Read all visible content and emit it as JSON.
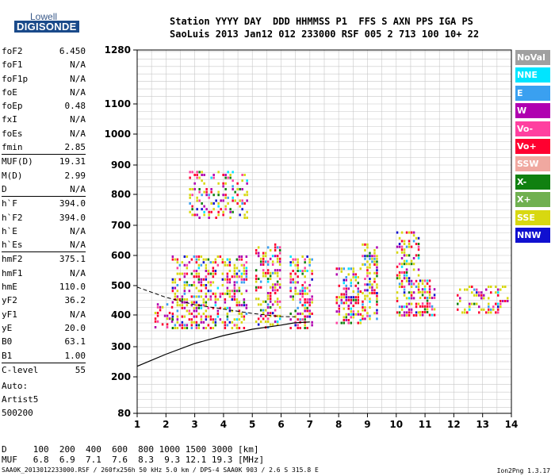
{
  "logo": {
    "line1": "Lowell",
    "line2": "DIGISONDE"
  },
  "header": {
    "row1": "Station YYYY DAY  DDD HHMMSS P1  FFS S AXN PPS IGA PS",
    "row2": "SaoLuis 2013 Jan12 012 233000 RSF 005 2 713 100 10+ 22"
  },
  "params": [
    {
      "label": "foF2",
      "value": "6.450"
    },
    {
      "label": "foF1",
      "value": "N/A"
    },
    {
      "label": "foF1p",
      "value": "N/A"
    },
    {
      "label": "foE",
      "value": "N/A"
    },
    {
      "label": "foEp",
      "value": "0.48"
    },
    {
      "label": "fxI",
      "value": "N/A"
    },
    {
      "label": "foEs",
      "value": "N/A"
    },
    {
      "label": "fmin",
      "value": "2.85"
    },
    {
      "label": "MUF(D)",
      "value": "19.31",
      "sep": true
    },
    {
      "label": "M(D)",
      "value": "2.99"
    },
    {
      "label": "D",
      "value": "N/A"
    },
    {
      "label": "h`F",
      "value": "394.0",
      "sep": true
    },
    {
      "label": "h`F2",
      "value": "394.0"
    },
    {
      "label": "h`E",
      "value": "N/A"
    },
    {
      "label": "h`Es",
      "value": "N/A"
    },
    {
      "label": "hmF2",
      "value": "375.1",
      "sep": true
    },
    {
      "label": "hmF1",
      "value": "N/A"
    },
    {
      "label": "hmE",
      "value": "110.0"
    },
    {
      "label": "yF2",
      "value": "36.2"
    },
    {
      "label": "yF1",
      "value": "N/A"
    },
    {
      "label": "yE",
      "value": "20.0"
    },
    {
      "label": "B0",
      "value": "63.1"
    },
    {
      "label": "B1",
      "value": "1.00"
    },
    {
      "label": "C-level",
      "value": "55",
      "sep": true
    }
  ],
  "autoscale": {
    "line1": "Auto:",
    "line2": "Artist5",
    "line3": "500200"
  },
  "legend": [
    {
      "label": "NoVal",
      "color": "#a0a0a0"
    },
    {
      "label": "NNE",
      "color": "#00e5ff"
    },
    {
      "label": "E",
      "color": "#3aa0f0"
    },
    {
      "label": "W",
      "color": "#b000b0"
    },
    {
      "label": "Vo-",
      "color": "#ff40a0"
    },
    {
      "label": "Vo+",
      "color": "#ff0030"
    },
    {
      "label": "SSW",
      "color": "#f0a8a0"
    },
    {
      "label": "X-",
      "color": "#108010"
    },
    {
      "label": "X+",
      "color": "#70b050"
    },
    {
      "label": "SSE",
      "color": "#d8d810"
    },
    {
      "label": "NNW",
      "color": "#1010d0"
    }
  ],
  "footer": {
    "d_row": "D     100  200  400  600  800 1000 1500 3000 [km]",
    "muf_row": "MUF   6.8  6.9  7.1  7.6  8.3  9.3 12.1 19.3 [MHz]",
    "file_row": "SAA0K_2013012233000.RSF / 260fx256h 50 kHz 5.0 km / DPS-4 SAA0K 903 / 2.6 S 315.8 E",
    "version": "Ion2Png 1.3.17"
  },
  "chart_data": {
    "type": "scatter",
    "title": "",
    "xlabel": "",
    "ylabel": "",
    "xlim": [
      1,
      14
    ],
    "ylim": [
      80,
      1280
    ],
    "y_scale": "nonlinear (ionogram virtual height)",
    "x_ticks": [
      1,
      2,
      3,
      4,
      5,
      6,
      7,
      8,
      9,
      10,
      11,
      12,
      13,
      14
    ],
    "y_ticks": [
      80,
      200,
      300,
      400,
      500,
      600,
      700,
      800,
      900,
      1000,
      1100,
      1280
    ],
    "grid": true,
    "legend_placement": "right",
    "echo_clusters": [
      {
        "x_range": [
          1.6,
          2.2
        ],
        "y_range": [
          360,
          440
        ],
        "density": 0.35
      },
      {
        "x_range": [
          2.2,
          4.8
        ],
        "y_range": [
          360,
          600
        ],
        "density": 0.42
      },
      {
        "x_range": [
          2.8,
          4.8
        ],
        "y_range": [
          720,
          880
        ],
        "density": 0.3
      },
      {
        "x_range": [
          5.1,
          6.0
        ],
        "y_range": [
          360,
          640
        ],
        "density": 0.4
      },
      {
        "x_range": [
          6.3,
          7.1
        ],
        "y_range": [
          360,
          600
        ],
        "density": 0.45
      },
      {
        "x_range": [
          7.9,
          8.8
        ],
        "y_range": [
          370,
          560
        ],
        "density": 0.5
      },
      {
        "x_range": [
          8.8,
          9.3
        ],
        "y_range": [
          390,
          640
        ],
        "density": 0.45
      },
      {
        "x_range": [
          10.0,
          10.8
        ],
        "y_range": [
          400,
          680
        ],
        "density": 0.45
      },
      {
        "x_range": [
          10.8,
          11.3
        ],
        "y_range": [
          400,
          520
        ],
        "density": 0.4
      },
      {
        "x_range": [
          12.1,
          13.9
        ],
        "y_range": [
          410,
          500
        ],
        "density": 0.3
      }
    ],
    "profile_curve": {
      "x": [
        1.0,
        1.5,
        2.0,
        3.0,
        4.0,
        5.0,
        6.0,
        6.45,
        7.0
      ],
      "y": [
        235,
        255,
        275,
        310,
        335,
        355,
        368,
        375,
        378
      ]
    },
    "trace_curve": {
      "x": [
        1.0,
        2.0,
        3.0,
        4.0,
        5.0,
        6.0,
        6.5
      ],
      "y": [
        495,
        460,
        435,
        420,
        405,
        395,
        394
      ]
    }
  }
}
